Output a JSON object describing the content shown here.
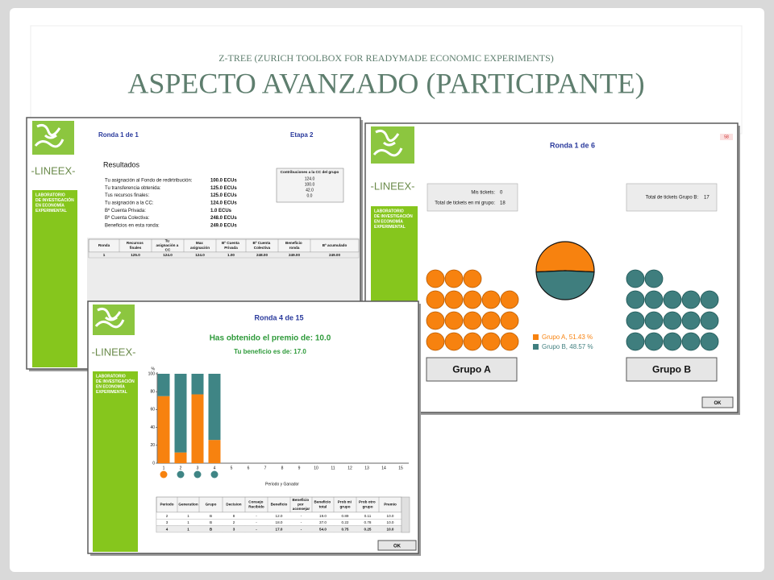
{
  "header": {
    "kicker": "Z-TREE (ZURICH TOOLBOX FOR READYMADE ECONOMIC EXPERIMENTS)",
    "title": "ASPECTO AVANZADO (PARTICIPANTE)"
  },
  "brand": {
    "name": "-LINEEX-",
    "lab": [
      "LABORATORIO",
      "DE INVESTIGACIÓN",
      "EN ECONOMÍA",
      "EXPERIMENTAL"
    ]
  },
  "results_screen": {
    "round": "Ronda 1 de 1",
    "stage": "Etapa 2",
    "heading": "Resultados",
    "rows": [
      [
        "Tu asignación al Fondo de redirtribución:",
        "100.0  ECUs"
      ],
      [
        "Tu transferencia obtenida:",
        "125.0 ECUs"
      ],
      [
        "Tus recursos finales:",
        "125.0 ECUs"
      ],
      [
        "Tu asignación a la CC:",
        "124.0 ECUs"
      ],
      [
        "Bº Cuenta Privada:",
        "1.0 ECUs"
      ],
      [
        "Bº Cuenta Colectiva:",
        "248.0 ECUs"
      ],
      [
        "Beneficios en esta ronda:",
        "249.0 ECUs"
      ]
    ],
    "contributions": {
      "title": "Contribuciones a la CC del grupo",
      "values": [
        "124.0",
        "100.0",
        "42.0",
        "0.0"
      ]
    },
    "table": {
      "headers": [
        "Ronda",
        "Recursos finales",
        "Tu asignación a CC",
        "Max asignación",
        "Bº Cuenta Privada",
        "Bº Cuenta Colectiva",
        "Beneficio ronda",
        "Bº acumulado"
      ],
      "rows": [
        [
          "1",
          "125.0",
          "124.0",
          "124.0",
          "1.00",
          "248.00",
          "249.00",
          "249.00"
        ]
      ]
    }
  },
  "lottery_screen": {
    "round": "Ronda 1 de 6",
    "timer": "58",
    "my_tickets_label": "Mis tickets:",
    "my_tickets": 0,
    "group_tickets_label": "Total de tickets en mi grupo:",
    "group_tickets": 18,
    "other_tickets_label": "Total de tickets Grupo B:",
    "other_tickets": 17,
    "pie": {
      "values": [
        51.43,
        48.57
      ],
      "value_labels": [
        "Grupo A, 51.43 %",
        "Grupo B, 48.57 %"
      ],
      "colors": [
        "#f7820f",
        "#3f7e7e"
      ]
    },
    "buttons": [
      "Grupo A",
      "Grupo B"
    ],
    "ok": "OK"
  },
  "chart_screen": {
    "round": "Ronda 4 de 15",
    "prize": "Has obtenido el premio de: 10.0",
    "profit": "Tu beneficio es de: 17.0",
    "table": {
      "headers": [
        "Periodo",
        "Generation",
        "Grupo",
        "Decision",
        "Consejo Recibido",
        "Beneficio",
        "Beneficio por aconsejar",
        "Beneficio total",
        "Prob mi grupo",
        "Prob otro grupo",
        "Premio"
      ],
      "rows": [
        [
          "2",
          "1",
          "B",
          "8",
          "-",
          "12.0",
          "-",
          "19.0",
          "0.89",
          "0.11",
          "10.0"
        ],
        [
          "3",
          "1",
          "B",
          "2",
          "-",
          "18.0",
          "-",
          "37.0",
          "0.22",
          "0.78",
          "10.0"
        ],
        [
          "4",
          "1",
          "B",
          "3",
          "-",
          "17.0",
          "-",
          "54.0",
          "0.75",
          "0.25",
          "10.0"
        ]
      ]
    },
    "ok": "OK"
  },
  "chart_data": {
    "type": "bar",
    "stacked": true,
    "categories": [
      "1",
      "2",
      "3",
      "4",
      "5",
      "6",
      "7",
      "8",
      "9",
      "10",
      "11",
      "12",
      "13",
      "14",
      "15"
    ],
    "series": [
      {
        "color": "#f7820f",
        "values": [
          75,
          12,
          77,
          26,
          null,
          null,
          null,
          null,
          null,
          null,
          null,
          null,
          null,
          null,
          null
        ]
      },
      {
        "color": "#3f8585",
        "values": [
          25,
          88,
          23,
          74,
          null,
          null,
          null,
          null,
          null,
          null,
          null,
          null,
          null,
          null,
          null
        ]
      }
    ],
    "markers": [
      "#f7820f",
      "#3f8585",
      "#3f8585",
      "#3f8585"
    ],
    "ylim": [
      0,
      100
    ],
    "yticks": [
      0,
      20,
      40,
      60,
      80,
      100
    ],
    "ylabel": "%",
    "xlabel": "Periodo y Ganador"
  }
}
